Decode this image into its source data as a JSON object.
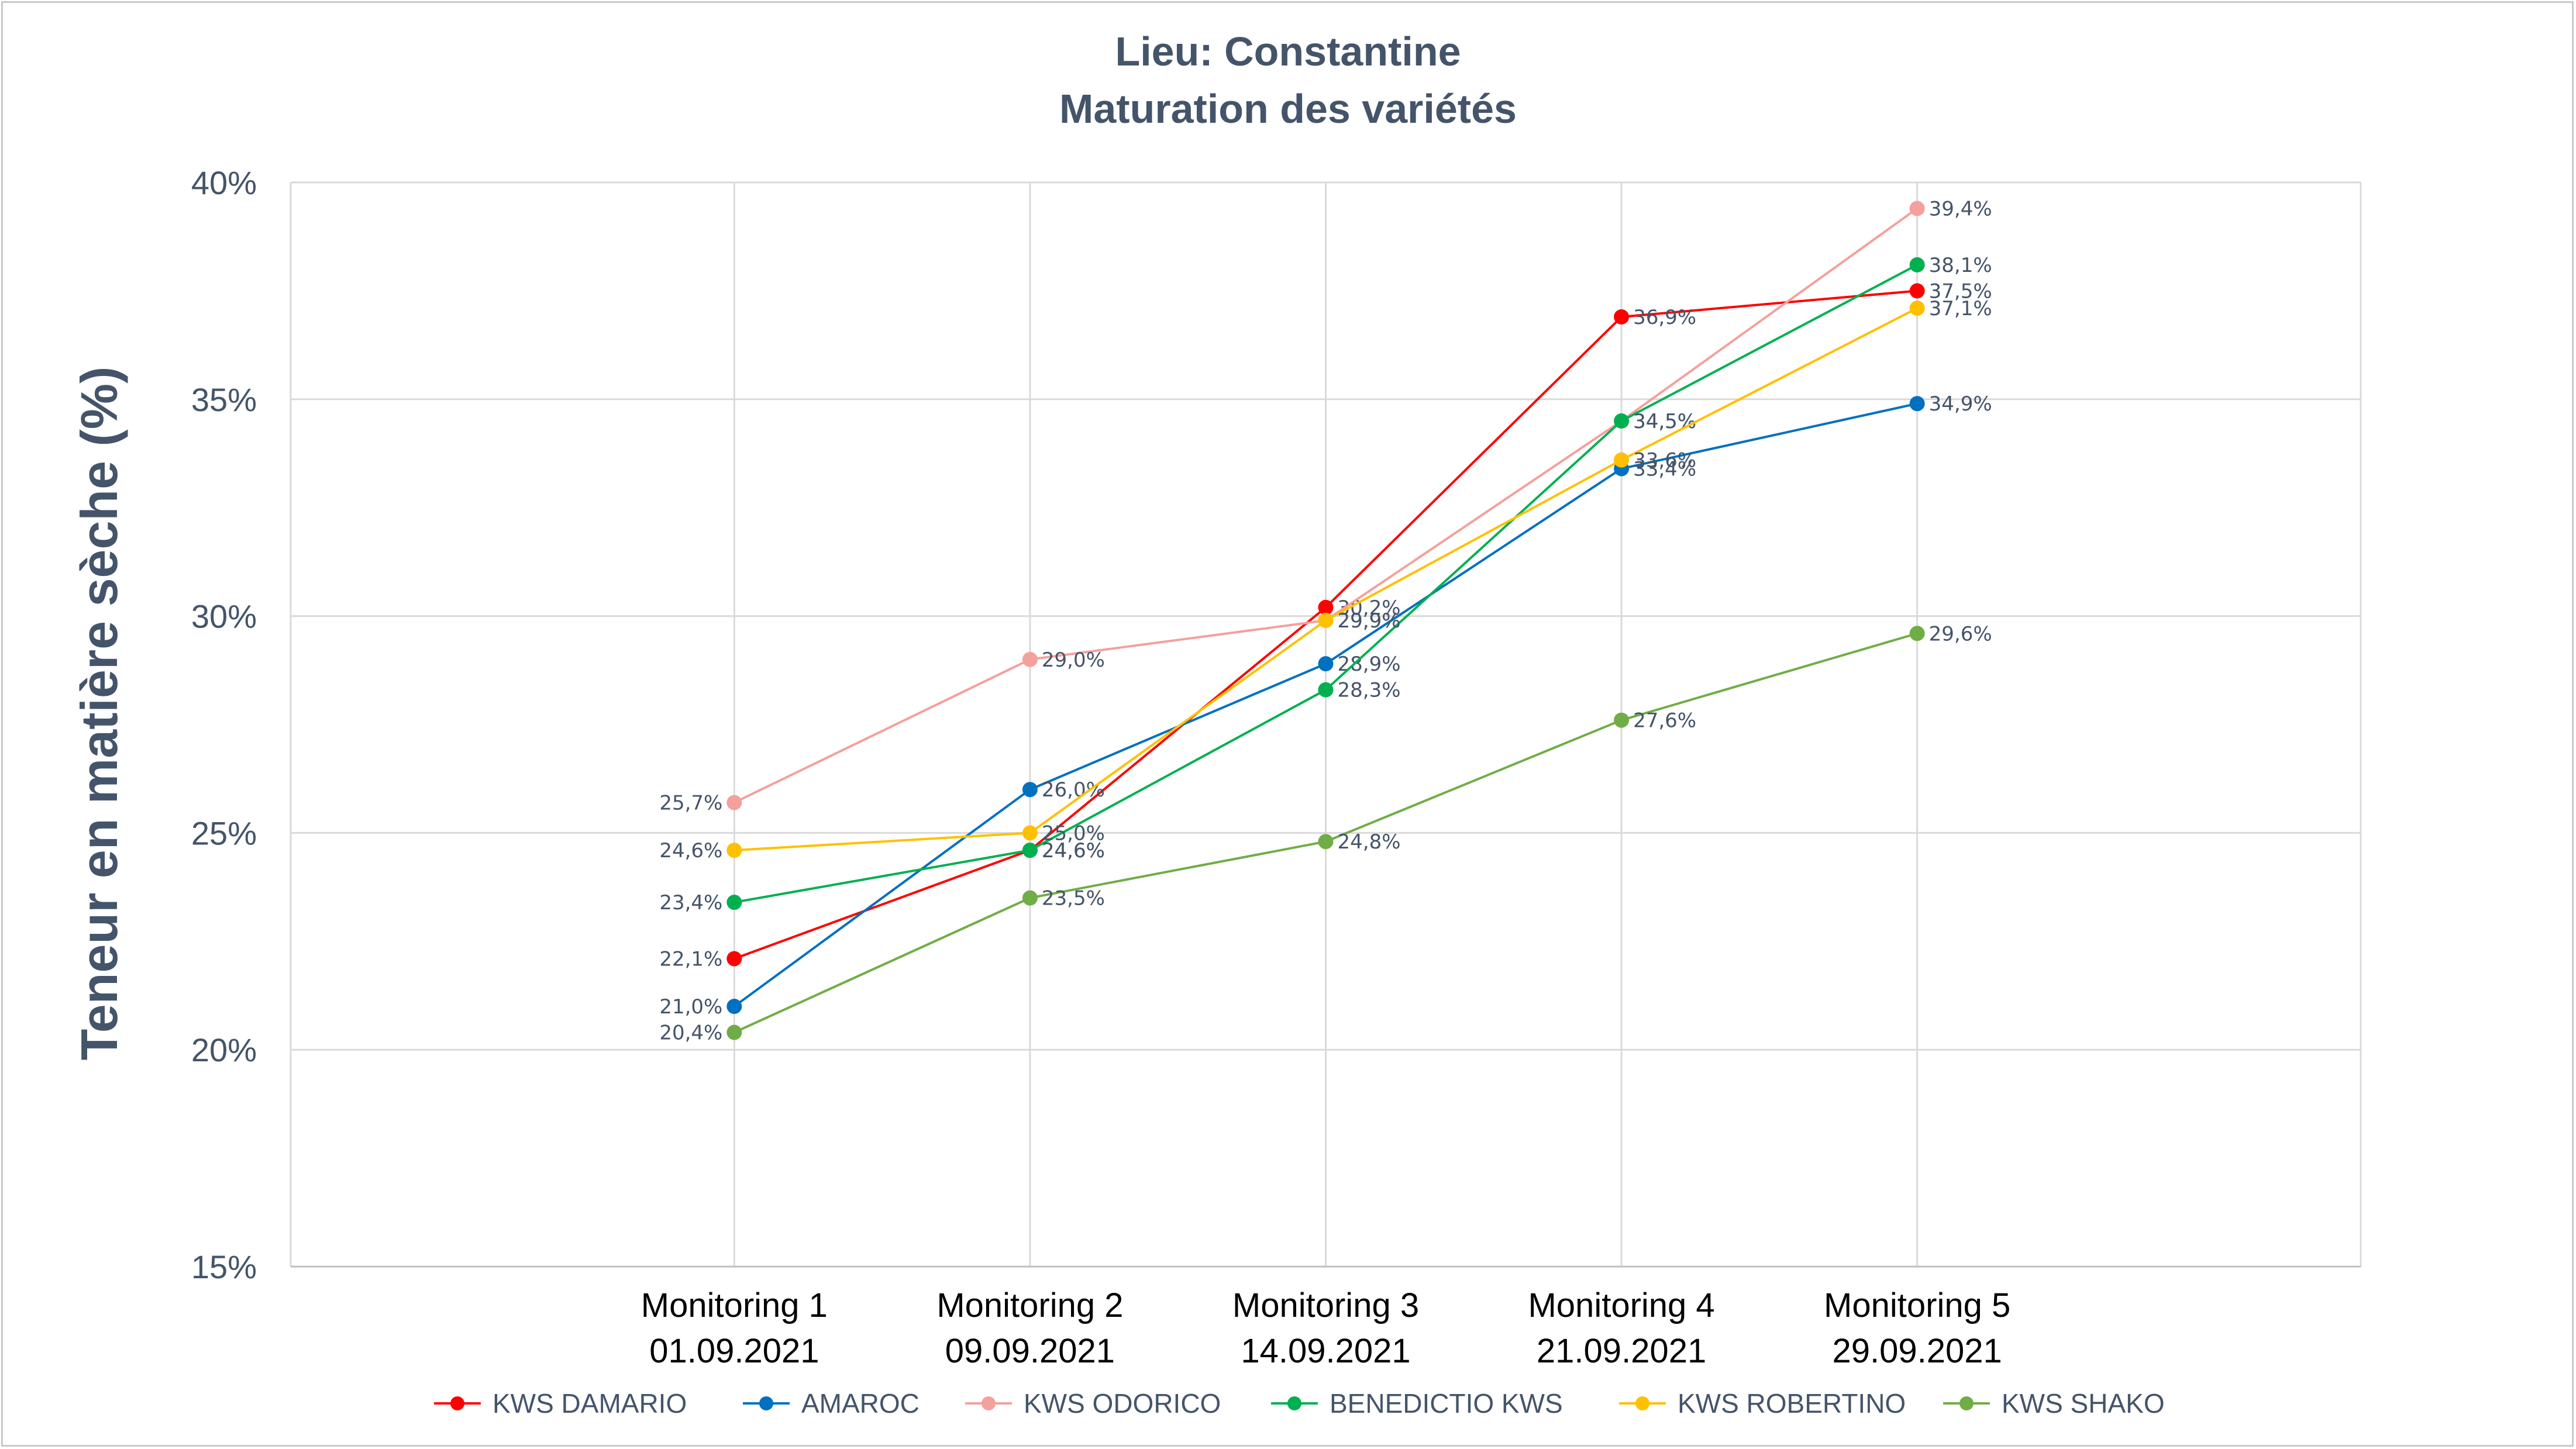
{
  "chart_data": {
    "type": "line",
    "title": "Lieu: Constantine",
    "subtitle": "Maturation des variétés",
    "ylabel": "Teneur en matière sèche (%)",
    "xlabel": "",
    "ylim": [
      15,
      40
    ],
    "yticks": [
      15,
      20,
      25,
      30,
      35,
      40
    ],
    "ytick_labels": [
      "15%",
      "20%",
      "25%",
      "30%",
      "35%",
      "40%"
    ],
    "categories": [
      {
        "line1": "Monitoring 1",
        "line2": "01.09.2021"
      },
      {
        "line1": "Monitoring 2",
        "line2": "09.09.2021"
      },
      {
        "line1": "Monitoring 3",
        "line2": "14.09.2021"
      },
      {
        "line1": "Monitoring 4",
        "line2": "21.09.2021"
      },
      {
        "line1": "Monitoring 5",
        "line2": "29.09.2021"
      }
    ],
    "grid": true,
    "legend_position": "bottom",
    "series": [
      {
        "name": "KWS DAMARIO",
        "color": "#ff0000",
        "values": [
          22.1,
          24.6,
          30.2,
          36.9,
          37.5
        ],
        "labels": [
          "22,1%",
          "24,6%",
          "30,2%",
          "36,9%",
          "37,5%"
        ]
      },
      {
        "name": "AMAROC",
        "color": "#0070c0",
        "values": [
          21.0,
          26.0,
          28.9,
          33.4,
          34.9
        ],
        "labels": [
          "21,0%",
          "26,0%",
          "28,9%",
          "33,4%",
          "34,9%"
        ]
      },
      {
        "name": "KWS ODORICO",
        "color": "#f4a09c",
        "values": [
          25.7,
          29.0,
          29.9,
          34.5,
          39.4
        ],
        "labels": [
          "25,7%",
          "29,0%",
          "29,9%",
          "34,5%",
          "39,4%"
        ]
      },
      {
        "name": "BENEDICTIO KWS",
        "color": "#00b050",
        "values": [
          23.4,
          24.6,
          28.3,
          34.5,
          38.1
        ],
        "labels": [
          "23,4%",
          "24,6%",
          "28,3%",
          "34,5%",
          "38,1%"
        ]
      },
      {
        "name": "KWS ROBERTINO",
        "color": "#ffc000",
        "values": [
          24.6,
          25.0,
          29.9,
          33.6,
          37.1
        ],
        "labels": [
          "24,6%",
          "25,0%",
          "29,9%",
          "33,6%",
          "37,1%"
        ]
      },
      {
        "name": "KWS SHAKO",
        "color": "#70ad47",
        "values": [
          20.4,
          23.5,
          24.8,
          27.6,
          29.6
        ],
        "labels": [
          "20,4%",
          "23,5%",
          "24,8%",
          "27,6%",
          "29,6%"
        ]
      }
    ]
  }
}
